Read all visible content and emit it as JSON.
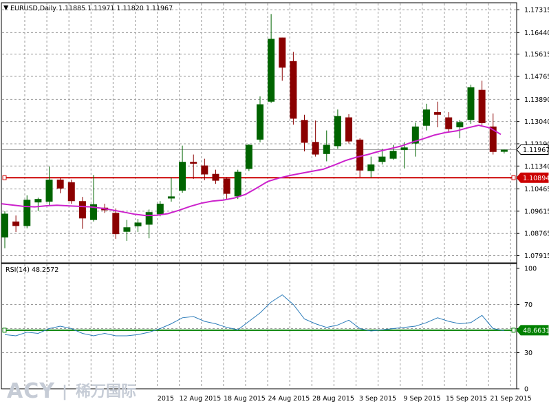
{
  "header": {
    "symbol_line": "EURUSD,Daily  1.11885 1.11971 1.11820 1.11967",
    "rsi_label": "RSI(14) 48.2572"
  },
  "watermark": {
    "latin": "ACY",
    "separator": "|",
    "cjk": "稀万国际"
  },
  "colors": {
    "bull": "#006400",
    "bear": "#8b0000",
    "ma": "#cc22cc",
    "support_line": "#cc0000",
    "rsi_line": "#2b7bb9",
    "rsi_level": "#008000",
    "price_tag_bg": "#ffffff",
    "support_tag_bg": "#cc0000",
    "rsi_tag_bg": "#008000"
  },
  "chart_data": [
    {
      "type": "candlestick",
      "title": "EURUSD,Daily",
      "y_ticks": [
        "1.17315",
        "1.16440",
        "1.15615",
        "1.14765",
        "1.13890",
        "1.13040",
        "1.12190",
        "1.11340",
        "1.10465",
        "1.09615",
        "1.08765",
        "1.07915"
      ],
      "ylim": [
        1.0764,
        1.1758
      ],
      "x_ticks": [
        {
          "label": "2015",
          "index": 14.5
        },
        {
          "label": "12 Aug 2015",
          "index": 17.6
        },
        {
          "label": "18 Aug 2015",
          "index": 21.6
        },
        {
          "label": "24 Aug 2015",
          "index": 25.6
        },
        {
          "label": "28 Aug 2015",
          "index": 29.6
        },
        {
          "label": "3 Sep 2015",
          "index": 33.6
        },
        {
          "label": "9 Sep 2015",
          "index": 37.6
        },
        {
          "label": "15 Sep 2015",
          "index": 41.6
        },
        {
          "label": "21 Sep 2015",
          "index": 45.6
        }
      ],
      "candles": [
        {
          "o": 1.0861,
          "h": 1.0962,
          "l": 1.082,
          "c": 1.0952
        },
        {
          "o": 1.0922,
          "h": 1.0945,
          "l": 1.0882,
          "c": 1.0905
        },
        {
          "o": 1.0905,
          "h": 1.1022,
          "l": 1.0896,
          "c": 1.1005
        },
        {
          "o": 1.0995,
          "h": 1.1013,
          "l": 1.0962,
          "c": 1.1008
        },
        {
          "o": 1.0998,
          "h": 1.1132,
          "l": 1.0985,
          "c": 1.1082
        },
        {
          "o": 1.1082,
          "h": 1.109,
          "l": 1.103,
          "c": 1.1048
        },
        {
          "o": 1.1072,
          "h": 1.1082,
          "l": 1.099,
          "c": 1.1
        },
        {
          "o": 1.1,
          "h": 1.1016,
          "l": 1.0894,
          "c": 1.0934
        },
        {
          "o": 1.0928,
          "h": 1.11,
          "l": 1.0922,
          "c": 1.0988
        },
        {
          "o": 1.0975,
          "h": 1.099,
          "l": 1.0955,
          "c": 1.0965
        },
        {
          "o": 1.0955,
          "h": 1.0972,
          "l": 1.0856,
          "c": 1.0874
        },
        {
          "o": 1.0883,
          "h": 1.0928,
          "l": 1.0848,
          "c": 1.09
        },
        {
          "o": 1.0904,
          "h": 1.0932,
          "l": 1.0882,
          "c": 1.0918
        },
        {
          "o": 1.091,
          "h": 1.0968,
          "l": 1.0858,
          "c": 1.0958
        },
        {
          "o": 1.095,
          "h": 1.1,
          "l": 1.0942,
          "c": 1.099
        },
        {
          "o": 1.101,
          "h": 1.109,
          "l": 1.0998,
          "c": 1.1018
        },
        {
          "o": 1.104,
          "h": 1.1212,
          "l": 1.1032,
          "c": 1.115
        },
        {
          "o": 1.115,
          "h": 1.1178,
          "l": 1.1085,
          "c": 1.1143
        },
        {
          "o": 1.1136,
          "h": 1.1162,
          "l": 1.108,
          "c": 1.1102
        },
        {
          "o": 1.1104,
          "h": 1.112,
          "l": 1.1066,
          "c": 1.1078
        },
        {
          "o": 1.1086,
          "h": 1.1092,
          "l": 1.1005,
          "c": 1.1028
        },
        {
          "o": 1.1018,
          "h": 1.112,
          "l": 1.1008,
          "c": 1.1112
        },
        {
          "o": 1.1123,
          "h": 1.1218,
          "l": 1.1115,
          "c": 1.1215
        },
        {
          "o": 1.1235,
          "h": 1.14,
          "l": 1.1225,
          "c": 1.137
        },
        {
          "o": 1.138,
          "h": 1.1715,
          "l": 1.1375,
          "c": 1.162
        },
        {
          "o": 1.1625,
          "h": 1.1625,
          "l": 1.146,
          "c": 1.151
        },
        {
          "o": 1.1535,
          "h": 1.157,
          "l": 1.1292,
          "c": 1.1315
        },
        {
          "o": 1.131,
          "h": 1.133,
          "l": 1.119,
          "c": 1.1223
        },
        {
          "o": 1.1226,
          "h": 1.1308,
          "l": 1.117,
          "c": 1.1178
        },
        {
          "o": 1.118,
          "h": 1.127,
          "l": 1.1152,
          "c": 1.1215
        },
        {
          "o": 1.121,
          "h": 1.135,
          "l": 1.12,
          "c": 1.1325
        },
        {
          "o": 1.132,
          "h": 1.1332,
          "l": 1.122,
          "c": 1.1228
        },
        {
          "o": 1.1235,
          "h": 1.124,
          "l": 1.1092,
          "c": 1.1117
        },
        {
          "o": 1.1115,
          "h": 1.117,
          "l": 1.109,
          "c": 1.114
        },
        {
          "o": 1.115,
          "h": 1.12,
          "l": 1.114,
          "c": 1.117
        },
        {
          "o": 1.1162,
          "h": 1.1215,
          "l": 1.1158,
          "c": 1.1192
        },
        {
          "o": 1.1195,
          "h": 1.1225,
          "l": 1.1125,
          "c": 1.1205
        },
        {
          "o": 1.122,
          "h": 1.13,
          "l": 1.117,
          "c": 1.1285
        },
        {
          "o": 1.1288,
          "h": 1.1372,
          "l": 1.127,
          "c": 1.135
        },
        {
          "o": 1.134,
          "h": 1.138,
          "l": 1.1282,
          "c": 1.133
        },
        {
          "o": 1.132,
          "h": 1.134,
          "l": 1.1265,
          "c": 1.1275
        },
        {
          "o": 1.1282,
          "h": 1.131,
          "l": 1.124,
          "c": 1.1302
        },
        {
          "o": 1.131,
          "h": 1.1445,
          "l": 1.1295,
          "c": 1.1435
        },
        {
          "o": 1.1425,
          "h": 1.146,
          "l": 1.129,
          "c": 1.1298
        },
        {
          "o": 1.1285,
          "h": 1.1335,
          "l": 1.1178,
          "c": 1.1188
        },
        {
          "o": 1.11885,
          "h": 1.11971,
          "l": 1.1182,
          "c": 1.11967
        }
      ],
      "moving_average": [
        1.099,
        1.0985,
        1.098,
        1.0978,
        1.0982,
        1.0984,
        1.0982,
        1.098,
        1.0978,
        1.0973,
        1.0966,
        1.0958,
        1.095,
        1.0945,
        1.0946,
        1.0952,
        1.0965,
        1.098,
        1.0992,
        1.1,
        1.1004,
        1.1012,
        1.1026,
        1.105,
        1.1075,
        1.1088,
        1.1098,
        1.1106,
        1.1114,
        1.1122,
        1.1138,
        1.1155,
        1.1168,
        1.1178,
        1.119,
        1.12,
        1.121,
        1.1225,
        1.1238,
        1.1252,
        1.1262,
        1.1268,
        1.128,
        1.129,
        1.128,
        1.1255
      ],
      "current_price": {
        "value": 1.11967,
        "label": "1.11967"
      },
      "support_line": {
        "value": 1.10894,
        "label": "1.10894"
      }
    },
    {
      "type": "line",
      "title": "RSI(14) 48.2572",
      "y_ticks": [
        "100",
        "70",
        "50",
        "30",
        "0"
      ],
      "ylim": [
        0,
        100
      ],
      "values": [
        45,
        44,
        47,
        46,
        50,
        52,
        50,
        46,
        44,
        46,
        44,
        44,
        45,
        47,
        50,
        54,
        59,
        60,
        56,
        54,
        51,
        49,
        56,
        63,
        72,
        78,
        70,
        58,
        54,
        51,
        53,
        57,
        50,
        48,
        49,
        50,
        51,
        52,
        55,
        59,
        56,
        54,
        55,
        61,
        50,
        48.26
      ],
      "level": {
        "value": 48.6631,
        "label": "48.6631"
      }
    }
  ]
}
